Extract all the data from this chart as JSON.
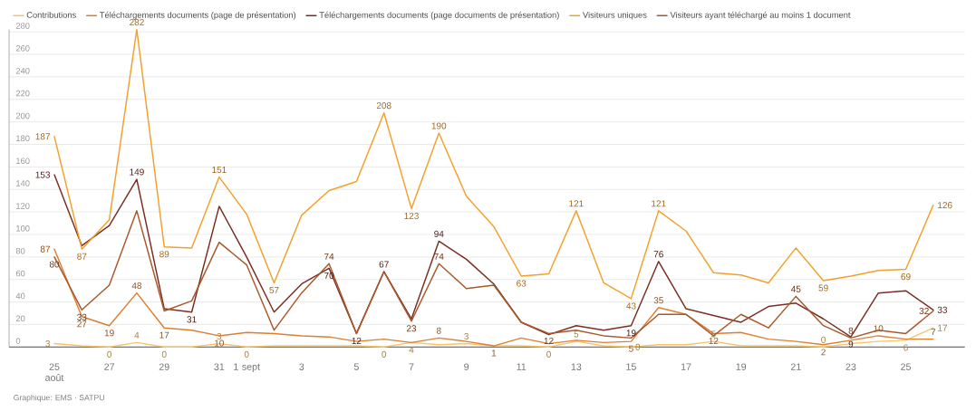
{
  "chart_data": {
    "type": "line",
    "categories": [
      "25 août",
      null,
      "27",
      null,
      "29",
      null,
      "31",
      "1 sept",
      null,
      "3",
      null,
      "5",
      null,
      "7",
      null,
      "9",
      null,
      "11",
      null,
      "13",
      null,
      "15",
      null,
      "17",
      null,
      "19",
      null,
      "21",
      null,
      "23",
      null,
      "25",
      null
    ],
    "series": [
      {
        "name": "Contributions",
        "color": "#f7c46c",
        "values": [
          3,
          1,
          0,
          4,
          0,
          0,
          3,
          0,
          1,
          1,
          1,
          1,
          0,
          4,
          2,
          3,
          1,
          1,
          0,
          5,
          1,
          0,
          2,
          2,
          5,
          1,
          1,
          1,
          0,
          3,
          5,
          6,
          17
        ],
        "value_labels": [
          "3",
          null,
          "0",
          "4",
          "0",
          null,
          "3",
          "0",
          null,
          null,
          null,
          null,
          "0",
          "4",
          null,
          "3",
          null,
          null,
          "0",
          "5",
          null,
          "0",
          null,
          null,
          "5",
          null,
          null,
          null,
          "0",
          null,
          null,
          "6",
          "17"
        ]
      },
      {
        "name": "Téléchargements documents (page de présentation)",
        "color": "#dd7f31",
        "values": [
          87,
          27,
          19,
          48,
          17,
          15,
          10,
          13,
          12,
          10,
          9,
          5,
          7,
          4,
          8,
          5,
          1,
          8,
          3,
          6,
          4,
          5,
          35,
          29,
          12,
          13,
          7,
          5,
          2,
          6,
          10,
          7,
          7
        ],
        "value_labels": [
          "87",
          "27",
          "19",
          "48",
          "17",
          null,
          "10",
          null,
          null,
          null,
          null,
          null,
          null,
          null,
          "8",
          null,
          "1",
          null,
          null,
          null,
          null,
          "5",
          "35",
          null,
          "12",
          null,
          null,
          null,
          "2",
          null,
          "10",
          null,
          "7"
        ]
      },
      {
        "name": "Téléchargements documents (page documents de présentation)",
        "color": "#7a2e22",
        "values": [
          153,
          90,
          108,
          149,
          34,
          31,
          125,
          80,
          31,
          56,
          70,
          12,
          67,
          25,
          94,
          78,
          56,
          22,
          11,
          19,
          15,
          19,
          76,
          34,
          28,
          22,
          36,
          39,
          25,
          9,
          48,
          50,
          33
        ],
        "value_labels": [
          "153",
          null,
          null,
          "149",
          null,
          "31",
          null,
          null,
          null,
          null,
          "70",
          "12",
          "67",
          null,
          "94",
          null,
          null,
          null,
          null,
          null,
          null,
          "19",
          "76",
          null,
          null,
          null,
          null,
          null,
          null,
          "9",
          null,
          null,
          "33"
        ]
      },
      {
        "name": "Visiteurs uniques",
        "color": "#f4a02c",
        "values": [
          187,
          87,
          113,
          282,
          89,
          88,
          151,
          118,
          57,
          117,
          139,
          147,
          208,
          123,
          190,
          134,
          107,
          63,
          65,
          121,
          57,
          43,
          121,
          103,
          66,
          64,
          57,
          88,
          59,
          63,
          68,
          69,
          126
        ],
        "value_labels": [
          "187",
          "87",
          null,
          "282",
          "89",
          null,
          "151",
          null,
          "57",
          null,
          null,
          null,
          "208",
          "123",
          "190",
          null,
          null,
          "63",
          null,
          "121",
          null,
          "43",
          "121",
          null,
          null,
          null,
          null,
          null,
          "59",
          null,
          null,
          "69",
          "126"
        ]
      },
      {
        "name": "Visiteurs ayant téléchargé au moins 1 document",
        "color": "#a8582a",
        "values": [
          80,
          33,
          55,
          121,
          32,
          41,
          93,
          73,
          15,
          48,
          74,
          12,
          67,
          23,
          74,
          52,
          55,
          22,
          12,
          15,
          10,
          8,
          29,
          29,
          10,
          29,
          17,
          45,
          19,
          8,
          15,
          12,
          32
        ],
        "value_labels": [
          "80",
          "33",
          null,
          null,
          null,
          null,
          null,
          null,
          null,
          null,
          "74",
          null,
          null,
          "23",
          "74",
          null,
          null,
          null,
          "12",
          null,
          null,
          null,
          null,
          null,
          null,
          null,
          null,
          "45",
          null,
          "8",
          null,
          null,
          "32"
        ]
      }
    ],
    "ylim": [
      0,
      282
    ],
    "yticks": [
      0,
      20,
      40,
      60,
      80,
      100,
      120,
      140,
      160,
      180,
      200,
      220,
      240,
      260,
      280
    ],
    "grid": "y",
    "legend": "top left",
    "annotations": [
      "Graphique: EMS · SATPU"
    ]
  }
}
